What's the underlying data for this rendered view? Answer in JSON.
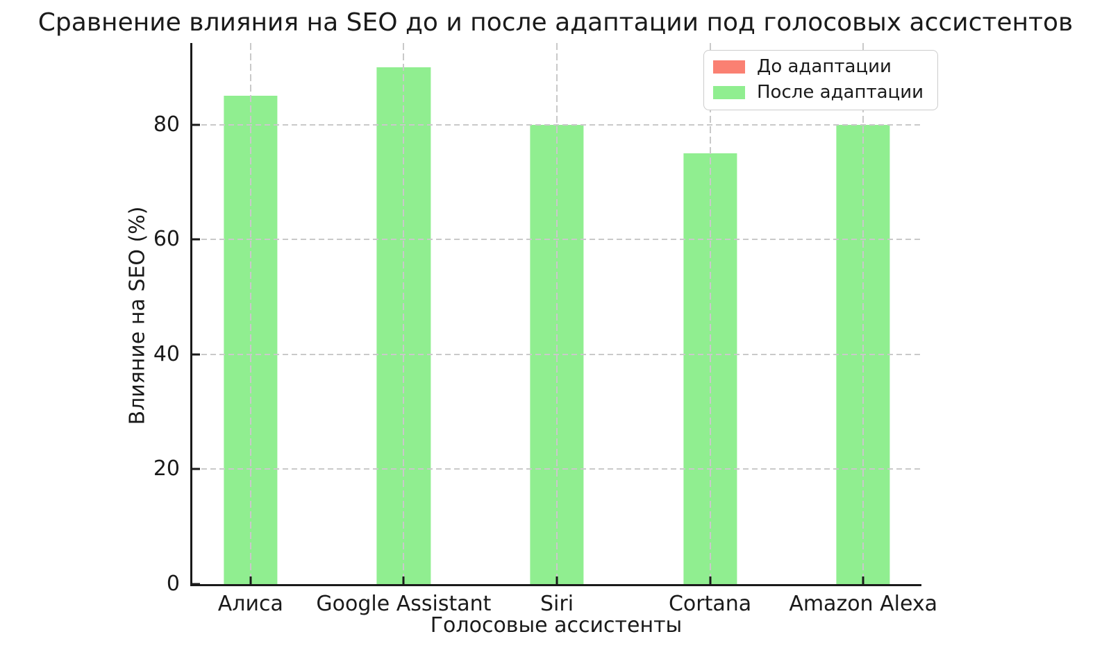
{
  "chart_data": {
    "type": "bar",
    "title": "Сравнение влияния на SEO до и после адаптации под голосовых ассистентов",
    "xlabel": "Голосовые ассистенты",
    "ylabel": "Влияние на SEO (%)",
    "categories": [
      "Алиса",
      "Google Assistant",
      "Siri",
      "Cortana",
      "Amazon Alexa"
    ],
    "series": [
      {
        "name": "До адаптации",
        "color": "#fa8072",
        "values": null,
        "note": "series appears only in the legend; its bars are fully hidden behind the 'После адаптации' bars"
      },
      {
        "name": "После адаптации",
        "color": "#90ee90",
        "values": [
          85,
          90,
          80,
          75,
          80
        ]
      }
    ],
    "yticks": [
      0,
      20,
      40,
      60,
      80
    ],
    "ylim": [
      0,
      94.2
    ],
    "xlim": [
      -0.38,
      4.38
    ],
    "bar_width_units": 0.35,
    "grid": true,
    "grid_style": "dashed",
    "grid_above_bars": true,
    "legend_position": "upper right",
    "background_color": "#ffffff",
    "text_color": "#1a1a1a",
    "grid_color": "#c9c9c9"
  }
}
